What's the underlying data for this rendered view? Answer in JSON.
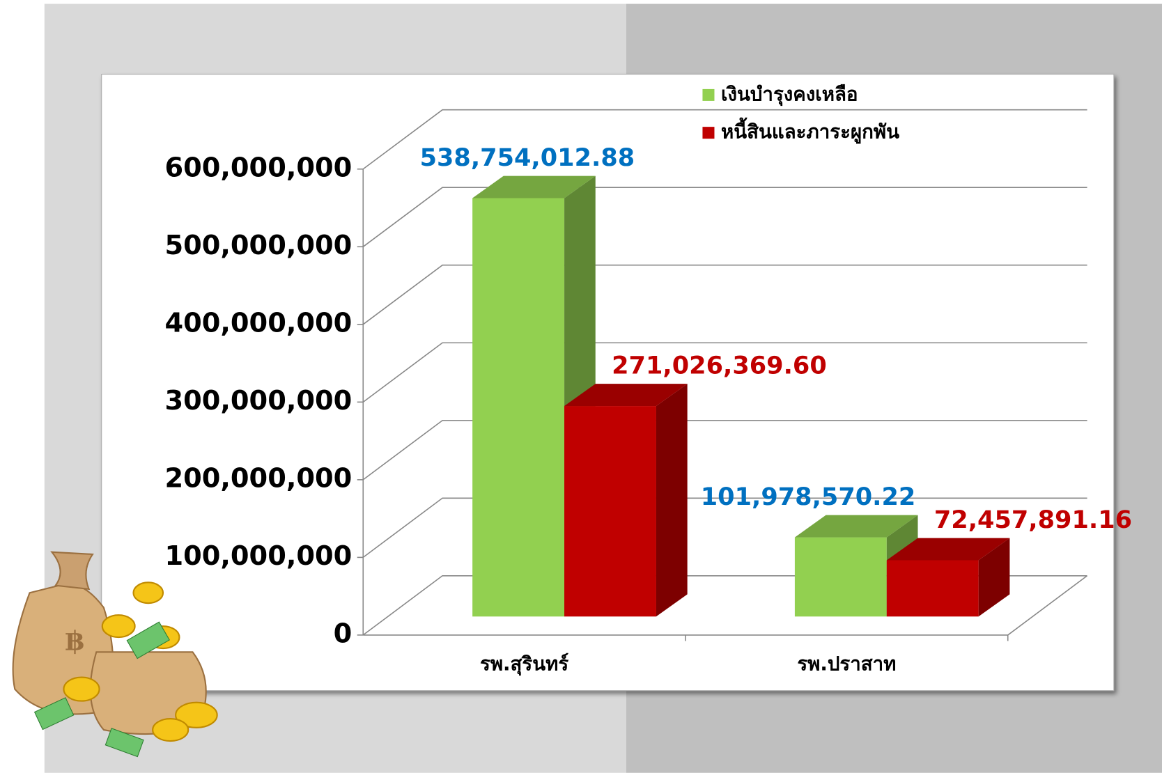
{
  "chart_data": {
    "type": "bar3d",
    "categories": [
      "รพ.สุรินทร์",
      "รพ.ปราสาท"
    ],
    "series": [
      {
        "name": "เงินบำรุงคงเหลือ",
        "color": "#92d050",
        "label_color": "#0070c0",
        "values": [
          538754012.88,
          101978570.22
        ],
        "value_labels": [
          "538,754,012.88",
          "101,978,570.22"
        ]
      },
      {
        "name": "หนี้สินและภาระผูกพัน",
        "color": "#c00000",
        "label_color": "#c00000",
        "values": [
          271026369.6,
          72457891.16
        ],
        "value_labels": [
          "271,026,369.60",
          "72,457,891.16"
        ]
      }
    ],
    "ylim": [
      0,
      600000000
    ],
    "yticks": [
      0,
      {
        "value": 100000000,
        "label": "100,000,000"
      },
      {
        "value": 200000000,
        "label": "200,000,000"
      },
      {
        "value": 300000000,
        "label": "300,000,000"
      },
      {
        "value": 400000000,
        "label": "400,000,000"
      },
      {
        "value": 500000000,
        "label": "500,000,000"
      },
      {
        "value": 600000000,
        "label": "600,000,000"
      }
    ],
    "grid": true,
    "legend": "top-right"
  }
}
